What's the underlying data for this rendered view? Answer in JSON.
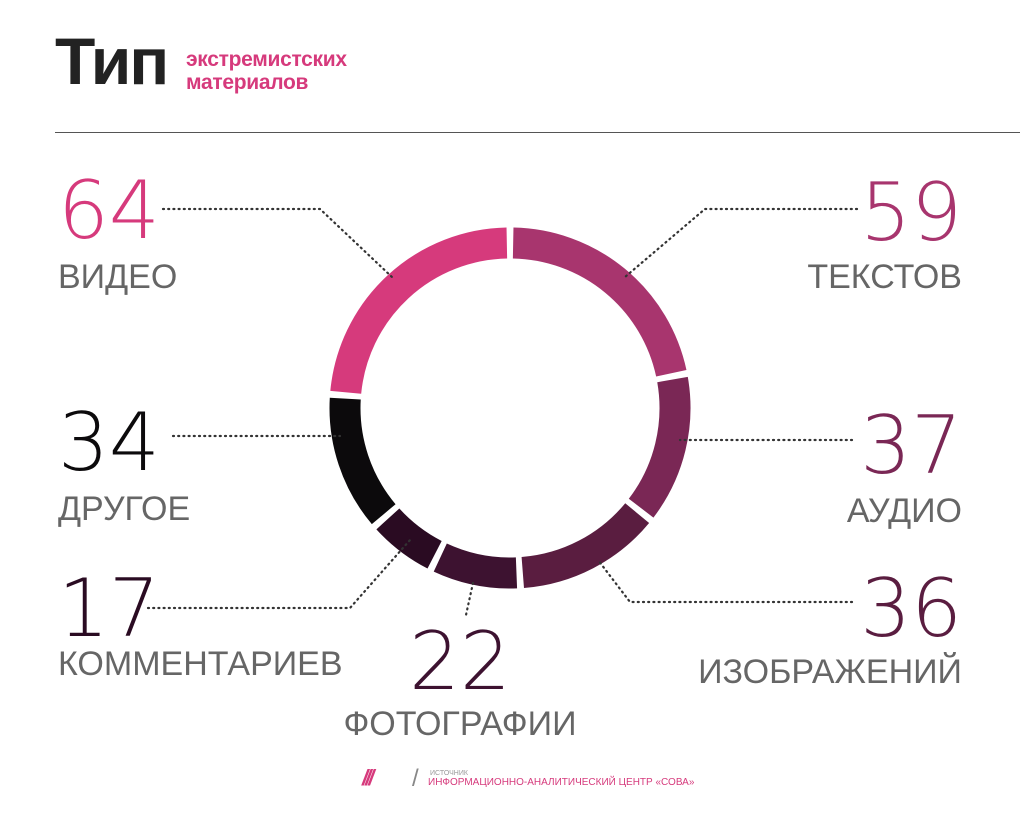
{
  "title": {
    "main": "Тип",
    "sub_line1": "экстремистских",
    "sub_line2": "материалов"
  },
  "chart_data": {
    "type": "pie",
    "style": "donut",
    "slices": [
      {
        "label": "ТЕКСТОВ",
        "value": 59,
        "color": "#a8356e"
      },
      {
        "label": "АУДИО",
        "value": 37,
        "color": "#7a2755"
      },
      {
        "label": "ИЗОБРАЖЕНИЙ",
        "value": 36,
        "color": "#5a1d40"
      },
      {
        "label": "ФОТОГРАФИИ",
        "value": 22,
        "color": "#3d1230"
      },
      {
        "label": "КОММЕНТАРИЕВ",
        "value": 17,
        "color": "#2a0b22"
      },
      {
        "label": "ДРУГОЕ",
        "value": 34,
        "color": "#0c0a0c"
      },
      {
        "label": "ВИДЕО",
        "value": 64,
        "color": "#d63a7c"
      }
    ]
  },
  "footer": {
    "logo": "///",
    "separator": "/",
    "source_label": "ИСТОЧНИК",
    "source": "ИНФОРМАЦИОННО-АНАЛИТИЧЕСКИЙ ЦЕНТР «СОВА»"
  },
  "colors": {
    "accent": "#d63a7c",
    "title": "#222222",
    "label": "#666666"
  }
}
